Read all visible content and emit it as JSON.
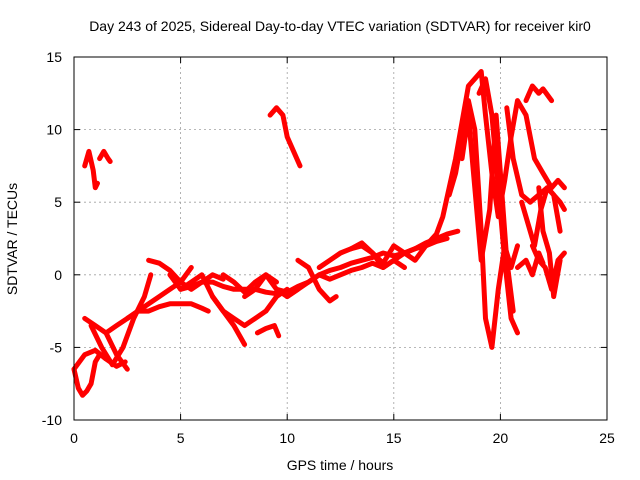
{
  "chart_data": {
    "type": "scatter",
    "title": "Day 243 of 2025, Sidereal Day-to-day VTEC variation (SDTVAR) for receiver kir0",
    "xlabel": "GPS time / hours",
    "ylabel": "SDTVAR / TECUs",
    "xlim": [
      0,
      25
    ],
    "ylim": [
      -10,
      15
    ],
    "xticks": [
      "0",
      "5",
      "10",
      "15",
      "20",
      "25"
    ],
    "yticks": [
      "-10",
      "-5",
      "0",
      "5",
      "10",
      "15"
    ],
    "grid": true,
    "marker": "plus",
    "color": "#ff0000",
    "series": [
      {
        "name": "s1",
        "x": [
          0.0,
          0.2,
          0.4,
          0.6,
          0.8,
          1.0,
          1.2
        ],
        "y": [
          -6.5,
          -7.8,
          -8.3,
          -8.0,
          -7.5,
          -6.0,
          -5.5
        ]
      },
      {
        "name": "s2",
        "x": [
          0.0,
          0.5,
          1.0,
          1.5,
          2.0,
          2.4
        ],
        "y": [
          -6.5,
          -5.5,
          -5.2,
          -5.8,
          -6.3,
          -6.0
        ]
      },
      {
        "name": "s3",
        "x": [
          0.5,
          0.7,
          0.9,
          1.0,
          1.1
        ],
        "y": [
          7.5,
          8.5,
          7.2,
          6.0,
          6.3
        ]
      },
      {
        "name": "s4",
        "x": [
          1.2,
          1.4,
          1.6,
          1.7
        ],
        "y": [
          8.0,
          8.5,
          8.0,
          7.8
        ]
      },
      {
        "name": "s5",
        "x": [
          0.5,
          1.0,
          1.5,
          2.0,
          2.5
        ],
        "y": [
          -3.0,
          -3.5,
          -4.0,
          -5.5,
          -6.5
        ]
      },
      {
        "name": "s6",
        "x": [
          0.8,
          1.3,
          1.8,
          2.3,
          2.8,
          3.3,
          3.6
        ],
        "y": [
          -3.5,
          -5.0,
          -6.2,
          -5.0,
          -3.0,
          -1.5,
          0.0
        ]
      },
      {
        "name": "s7",
        "x": [
          1.5,
          2.0,
          2.5,
          3.0,
          3.5,
          4.0,
          4.5,
          5.0,
          5.5
        ],
        "y": [
          -4.0,
          -3.5,
          -3.0,
          -2.5,
          -2.0,
          -1.5,
          -1.0,
          -0.5,
          0.5
        ]
      },
      {
        "name": "s8",
        "x": [
          2.5,
          3.0,
          3.5,
          4.0,
          4.5,
          5.0,
          5.5,
          6.0,
          6.3
        ],
        "y": [
          -3.0,
          -2.5,
          -2.5,
          -2.2,
          -2.0,
          -2.0,
          -2.0,
          -2.3,
          -2.5
        ]
      },
      {
        "name": "s9",
        "x": [
          3.5,
          4.0,
          4.5,
          5.0,
          5.5,
          6.0,
          6.5,
          7.0
        ],
        "y": [
          1.0,
          0.8,
          0.3,
          -0.5,
          -1.0,
          -0.5,
          0.0,
          -0.3
        ]
      },
      {
        "name": "s10",
        "x": [
          4.5,
          5.0,
          5.5,
          6.0,
          6.5,
          7.0,
          7.5,
          8.0
        ],
        "y": [
          0.0,
          -1.0,
          -0.5,
          0.0,
          -1.5,
          -2.5,
          -3.5,
          -4.8
        ]
      },
      {
        "name": "s11",
        "x": [
          5.0,
          5.5,
          6.0,
          6.5,
          7.0,
          7.5,
          8.0,
          8.5,
          9.0,
          9.5
        ],
        "y": [
          -1.0,
          -0.8,
          -0.5,
          -0.5,
          -0.8,
          -1.0,
          -1.0,
          -1.0,
          -1.2,
          -1.3
        ]
      },
      {
        "name": "s12",
        "x": [
          6.5,
          7.0,
          7.5,
          8.0,
          8.5,
          9.0,
          9.5,
          10.0
        ],
        "y": [
          -1.5,
          -2.5,
          -3.0,
          -3.5,
          -3.0,
          -2.5,
          -1.5,
          -1.0
        ]
      },
      {
        "name": "s13",
        "x": [
          7.0,
          7.5,
          8.0,
          8.5,
          9.0,
          9.5,
          10.0,
          10.5
        ],
        "y": [
          0.0,
          -0.5,
          -1.2,
          -0.5,
          0.0,
          -1.0,
          -1.5,
          -1.0
        ]
      },
      {
        "name": "s14",
        "x": [
          8.0,
          8.5,
          9.0,
          9.5
        ],
        "y": [
          -1.5,
          -1.0,
          0.0,
          -0.5
        ]
      },
      {
        "name": "s15",
        "x": [
          8.6,
          9.0,
          9.4,
          9.6
        ],
        "y": [
          -4.0,
          -3.7,
          -3.5,
          -4.2
        ]
      },
      {
        "name": "s16",
        "x": [
          9.2,
          9.5,
          9.8,
          10.0,
          10.3,
          10.6
        ],
        "y": [
          11.0,
          11.5,
          11.0,
          9.5,
          8.5,
          7.5
        ]
      },
      {
        "name": "s17",
        "x": [
          9.5,
          10.0,
          10.5,
          11.0,
          11.5,
          12.0,
          12.5,
          13.0,
          13.5,
          14.0,
          14.5,
          15.0,
          15.5,
          16.0,
          16.5,
          17.0,
          17.5
        ],
        "y": [
          -1.0,
          -1.2,
          -0.8,
          -0.5,
          0.0,
          0.3,
          0.5,
          0.8,
          1.0,
          1.2,
          1.5,
          1.3,
          1.5,
          1.8,
          2.0,
          2.3,
          2.5
        ]
      },
      {
        "name": "s18",
        "x": [
          10.0,
          10.5,
          11.0,
          11.5,
          12.0,
          12.5,
          13.0,
          13.5,
          14.0,
          14.5,
          15.0,
          15.5,
          16.0,
          16.5,
          17.0,
          17.5,
          18.0
        ],
        "y": [
          -1.5,
          -1.0,
          -0.5,
          0.0,
          -0.3,
          0.0,
          0.3,
          0.5,
          0.8,
          0.5,
          1.0,
          1.5,
          1.8,
          2.2,
          2.5,
          2.8,
          3.0
        ]
      },
      {
        "name": "s19",
        "x": [
          10.5,
          11.0,
          11.5,
          12.0,
          12.3
        ],
        "y": [
          1.0,
          0.5,
          -1.0,
          -1.8,
          -1.5
        ]
      },
      {
        "name": "s20",
        "x": [
          11.5,
          12.0,
          12.5,
          13.0,
          13.5,
          14.0,
          14.5,
          15.0,
          15.5
        ],
        "y": [
          0.5,
          1.0,
          1.5,
          1.8,
          2.0,
          1.5,
          0.5,
          1.0,
          0.5
        ]
      },
      {
        "name": "s21",
        "x": [
          13.0,
          13.5,
          14.0,
          14.5,
          15.0,
          15.5,
          16.0,
          16.5
        ],
        "y": [
          1.8,
          2.2,
          1.5,
          0.8,
          2.0,
          1.5,
          1.0,
          2.0
        ]
      },
      {
        "name": "s22",
        "x": [
          16.5,
          17.0,
          17.3,
          17.6,
          17.9,
          18.2,
          18.5,
          18.8,
          19.1,
          19.3,
          19.6,
          19.9,
          20.2,
          20.5,
          20.8,
          21.2,
          21.6,
          22.0,
          22.4,
          22.7,
          23.0
        ],
        "y": [
          2.0,
          2.8,
          4.0,
          6.0,
          8.0,
          10.5,
          13.0,
          13.5,
          14.0,
          11.0,
          7.0,
          4.0,
          6.5,
          9.5,
          12.0,
          11.0,
          8.0,
          7.0,
          6.0,
          6.5,
          6.0
        ]
      },
      {
        "name": "s23",
        "x": [
          17.6,
          17.9,
          18.2,
          18.5,
          18.8,
          19.1,
          19.3,
          19.6,
          19.9,
          20.2,
          20.5,
          20.8
        ],
        "y": [
          5.5,
          7.0,
          9.5,
          12.0,
          10.0,
          3.0,
          -3.0,
          -5.0,
          -1.0,
          2.0,
          0.5,
          2.0
        ]
      },
      {
        "name": "s24",
        "x": [
          18.2,
          18.5,
          18.8,
          19.1,
          19.5,
          19.8,
          20.0,
          20.3,
          20.6
        ],
        "y": [
          8.0,
          11.0,
          6.0,
          1.0,
          4.5,
          11.0,
          7.0,
          1.0,
          -2.5
        ]
      },
      {
        "name": "s25",
        "x": [
          19.0,
          19.3,
          19.6,
          19.9,
          20.2,
          20.5,
          20.8
        ],
        "y": [
          12.5,
          13.5,
          11.0,
          6.0,
          1.0,
          -3.0,
          -4.0
        ]
      },
      {
        "name": "s26",
        "x": [
          20.3,
          20.6,
          21.0,
          21.4,
          21.8,
          22.2,
          22.5,
          22.8,
          23.0
        ],
        "y": [
          11.5,
          8.0,
          5.5,
          5.0,
          5.5,
          6.0,
          5.5,
          5.0,
          4.5
        ]
      },
      {
        "name": "s27",
        "x": [
          21.5,
          21.8,
          22.1,
          22.4,
          22.7,
          23.0
        ],
        "y": [
          2.0,
          1.0,
          0.5,
          -1.0,
          1.0,
          1.5
        ]
      },
      {
        "name": "s28",
        "x": [
          21.0,
          21.3,
          21.6,
          21.9,
          22.2,
          22.5,
          22.8
        ],
        "y": [
          5.0,
          3.5,
          2.0,
          4.5,
          6.0,
          5.5,
          3.0
        ]
      },
      {
        "name": "s29",
        "x": [
          21.8,
          22.0,
          22.3,
          22.5,
          22.8
        ],
        "y": [
          6.0,
          3.0,
          1.5,
          -1.5,
          1.0
        ]
      },
      {
        "name": "s30",
        "x": [
          20.8,
          21.2,
          21.5,
          21.8,
          22.0
        ],
        "y": [
          0.5,
          1.0,
          0.0,
          1.5,
          0.8
        ]
      },
      {
        "name": "s31",
        "x": [
          21.2,
          21.5,
          21.8,
          22.0,
          22.4
        ],
        "y": [
          12.0,
          13.0,
          12.5,
          12.8,
          12.0
        ]
      }
    ]
  }
}
